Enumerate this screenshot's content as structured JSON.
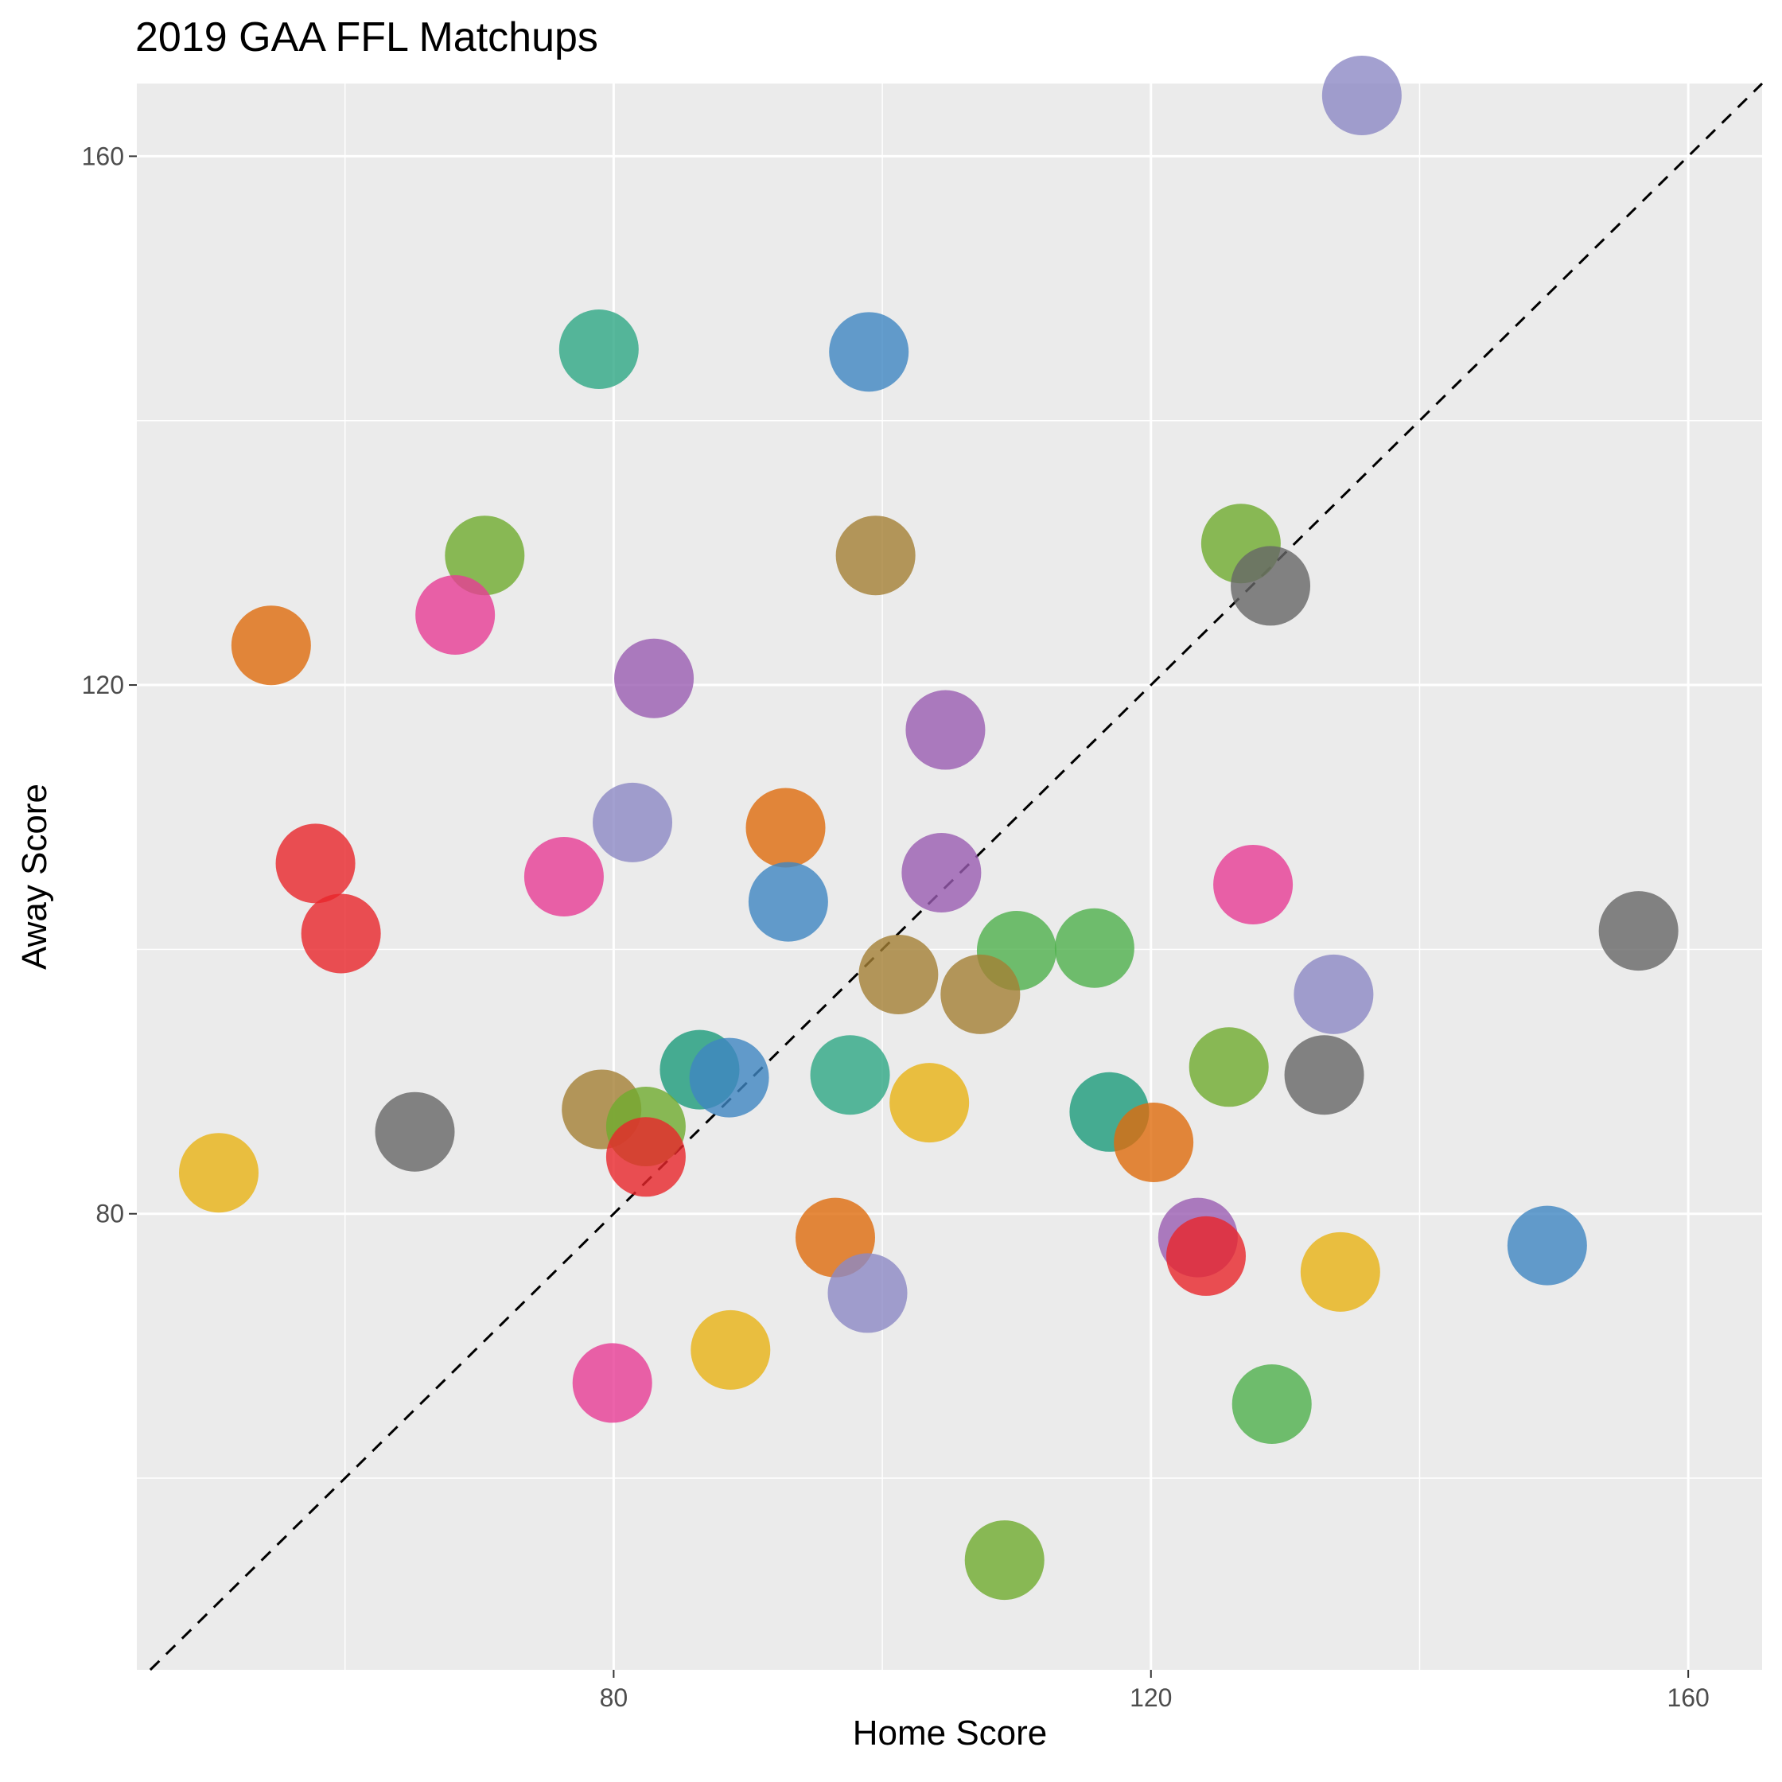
{
  "chart_data": {
    "type": "scatter",
    "title": "2019 GAA FFL Matchups",
    "xlabel": "Home Score",
    "ylabel": "Away Score",
    "xlim": [
      44.5,
      165.5
    ],
    "ylim": [
      45.5,
      165.5
    ],
    "x_major_ticks": [
      80,
      120,
      160
    ],
    "y_major_ticks": [
      80,
      120,
      160
    ],
    "x_minor_ticks": [
      60,
      100,
      140
    ],
    "y_minor_ticks": [
      60,
      100,
      140
    ],
    "grid": true,
    "legend": "none",
    "reference_line": {
      "type": "identity",
      "style": "dashed",
      "color": "#000000"
    },
    "background": "#ebebeb",
    "gridline_color": "#ffffff",
    "point_opacity": 0.8,
    "points": [
      {
        "x": 135.7,
        "y": 164.6,
        "color": "#8c88c4"
      },
      {
        "x": 78.9,
        "y": 145.4,
        "color": "#2ea884"
      },
      {
        "x": 99.0,
        "y": 145.2,
        "color": "#3e86c2"
      },
      {
        "x": 70.4,
        "y": 129.8,
        "color": "#6fab2e"
      },
      {
        "x": 99.5,
        "y": 129.8,
        "color": "#a47f35"
      },
      {
        "x": 126.7,
        "y": 130.7,
        "color": "#6fab2e"
      },
      {
        "x": 128.9,
        "y": 127.5,
        "color": "#666666"
      },
      {
        "x": 54.5,
        "y": 123.0,
        "color": "#de6b0c"
      },
      {
        "x": 68.2,
        "y": 125.3,
        "color": "#e73c95"
      },
      {
        "x": 83.0,
        "y": 120.5,
        "color": "#9a5cb2"
      },
      {
        "x": 104.7,
        "y": 116.6,
        "color": "#9a5cb2"
      },
      {
        "x": 81.4,
        "y": 109.6,
        "color": "#8c88c4"
      },
      {
        "x": 92.8,
        "y": 109.2,
        "color": "#de6b0c"
      },
      {
        "x": 57.8,
        "y": 106.5,
        "color": "#e8262b"
      },
      {
        "x": 76.3,
        "y": 105.5,
        "color": "#e73c95"
      },
      {
        "x": 104.4,
        "y": 105.8,
        "color": "#9a5cb2"
      },
      {
        "x": 127.6,
        "y": 104.9,
        "color": "#e73c95"
      },
      {
        "x": 59.7,
        "y": 101.2,
        "color": "#e8262b"
      },
      {
        "x": 93.0,
        "y": 103.6,
        "color": "#3e86c2"
      },
      {
        "x": 101.2,
        "y": 98.1,
        "color": "#a47f35"
      },
      {
        "x": 110.0,
        "y": 99.9,
        "color": "#4fb04c"
      },
      {
        "x": 115.8,
        "y": 100.1,
        "color": "#4fb04c"
      },
      {
        "x": 107.3,
        "y": 96.6,
        "color": "#a47f35"
      },
      {
        "x": 156.3,
        "y": 101.4,
        "color": "#666666"
      },
      {
        "x": 133.6,
        "y": 96.6,
        "color": "#8c88c4"
      },
      {
        "x": 86.4,
        "y": 90.9,
        "color": "#1b9b7b"
      },
      {
        "x": 88.6,
        "y": 90.3,
        "color": "#3e86c2"
      },
      {
        "x": 97.6,
        "y": 90.5,
        "color": "#2ea884"
      },
      {
        "x": 125.8,
        "y": 91.1,
        "color": "#6fab2e"
      },
      {
        "x": 132.9,
        "y": 90.5,
        "color": "#666666"
      },
      {
        "x": 79.1,
        "y": 87.9,
        "color": "#a47f35"
      },
      {
        "x": 103.5,
        "y": 88.4,
        "color": "#e8b314"
      },
      {
        "x": 116.9,
        "y": 87.7,
        "color": "#1b9b7b"
      },
      {
        "x": 82.4,
        "y": 86.6,
        "color": "#6fab2e"
      },
      {
        "x": 82.4,
        "y": 84.3,
        "color": "#e8262b"
      },
      {
        "x": 65.2,
        "y": 86.2,
        "color": "#666666"
      },
      {
        "x": 50.6,
        "y": 83.1,
        "color": "#e8b314"
      },
      {
        "x": 120.2,
        "y": 85.4,
        "color": "#de6b0c"
      },
      {
        "x": 96.5,
        "y": 78.2,
        "color": "#de6b0c"
      },
      {
        "x": 123.5,
        "y": 78.2,
        "color": "#9a5cb2"
      },
      {
        "x": 124.1,
        "y": 76.8,
        "color": "#e8262b"
      },
      {
        "x": 149.5,
        "y": 77.6,
        "color": "#3e86c2"
      },
      {
        "x": 134.1,
        "y": 75.6,
        "color": "#e8b314"
      },
      {
        "x": 98.9,
        "y": 74.0,
        "color": "#8c88c4"
      },
      {
        "x": 88.7,
        "y": 69.7,
        "color": "#e8b314"
      },
      {
        "x": 79.9,
        "y": 67.2,
        "color": "#e73c95"
      },
      {
        "x": 129.0,
        "y": 65.6,
        "color": "#4fb04c"
      },
      {
        "x": 109.1,
        "y": 53.8,
        "color": "#6fab2e"
      }
    ]
  }
}
